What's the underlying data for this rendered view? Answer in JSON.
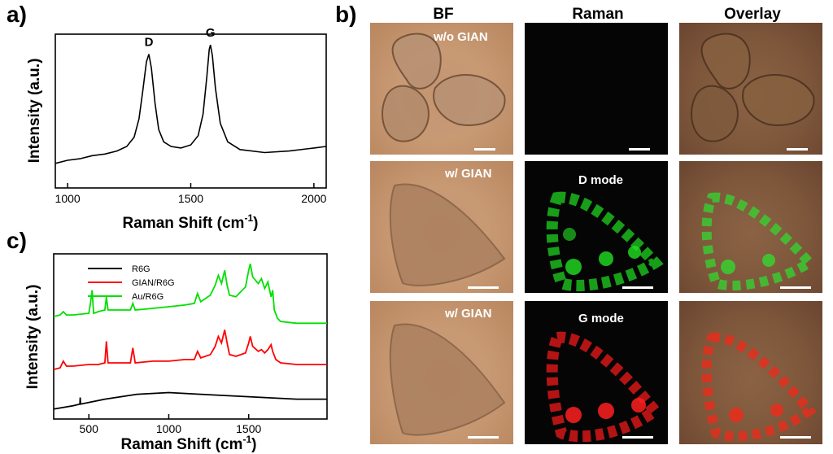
{
  "panels": {
    "a": "a)",
    "b": "b)",
    "c": "c)"
  },
  "chart_data": [
    {
      "id": "a",
      "type": "line",
      "xlabel": "Raman Shift (cm",
      "xlabel_sup": "-1",
      "xlabel_end": ")",
      "ylabel": "Intensity (a.u.)",
      "xlim": [
        950,
        2050
      ],
      "xticks": [
        1000,
        1500,
        2000
      ],
      "xtick_labels": [
        "1000",
        "1500",
        "2000"
      ],
      "annotations": [
        {
          "text": "D",
          "x": 1330
        },
        {
          "text": "G",
          "x": 1580
        }
      ],
      "series": [
        {
          "color": "#000000",
          "x": [
            950,
            1000,
            1050,
            1100,
            1150,
            1200,
            1240,
            1270,
            1290,
            1305,
            1320,
            1330,
            1340,
            1355,
            1370,
            1390,
            1420,
            1460,
            1500,
            1530,
            1550,
            1565,
            1575,
            1580,
            1588,
            1600,
            1620,
            1650,
            1700,
            1800,
            1900,
            2000,
            2050
          ],
          "y": [
            0.16,
            0.18,
            0.19,
            0.21,
            0.22,
            0.24,
            0.27,
            0.33,
            0.45,
            0.63,
            0.82,
            0.87,
            0.78,
            0.55,
            0.38,
            0.3,
            0.27,
            0.26,
            0.28,
            0.34,
            0.48,
            0.72,
            0.9,
            0.93,
            0.86,
            0.65,
            0.42,
            0.3,
            0.25,
            0.23,
            0.24,
            0.26,
            0.27
          ]
        }
      ]
    },
    {
      "id": "c",
      "type": "line",
      "xlabel": "Raman Shift (cm",
      "xlabel_sup": "-1",
      "xlabel_end": ")",
      "ylabel": "Intensity (a.u.)",
      "xlim": [
        280,
        1990
      ],
      "xticks": [
        500,
        1000,
        1500
      ],
      "xtick_labels": [
        "500",
        "1000",
        "1500"
      ],
      "legend_position": "top-left",
      "series": [
        {
          "name": "R6G",
          "color": "#000000",
          "x": [
            280,
            400,
            444,
            446,
            448,
            600,
            800,
            1000,
            1200,
            1400,
            1600,
            1800,
            1990
          ],
          "y": [
            0.06,
            0.08,
            0.09,
            0.13,
            0.09,
            0.12,
            0.15,
            0.16,
            0.15,
            0.14,
            0.13,
            0.12,
            0.12
          ]
        },
        {
          "name": "GIAN/R6G",
          "color": "#ff0000",
          "x": [
            280,
            320,
            340,
            360,
            400,
            500,
            560,
            600,
            610,
            620,
            700,
            760,
            775,
            790,
            900,
            1000,
            1100,
            1160,
            1180,
            1200,
            1260,
            1290,
            1310,
            1330,
            1350,
            1365,
            1380,
            1420,
            1480,
            1500,
            1510,
            1525,
            1560,
            1580,
            1600,
            1620,
            1640,
            1650,
            1670,
            1700,
            1800,
            1990
          ],
          "y": [
            0.3,
            0.31,
            0.35,
            0.32,
            0.32,
            0.33,
            0.33,
            0.34,
            0.47,
            0.34,
            0.34,
            0.34,
            0.43,
            0.34,
            0.35,
            0.35,
            0.36,
            0.36,
            0.41,
            0.37,
            0.39,
            0.44,
            0.5,
            0.46,
            0.54,
            0.46,
            0.39,
            0.38,
            0.4,
            0.46,
            0.5,
            0.44,
            0.41,
            0.42,
            0.4,
            0.42,
            0.45,
            0.41,
            0.36,
            0.34,
            0.33,
            0.33
          ]
        },
        {
          "name": "Au/R6G",
          "color": "#00e000",
          "x": [
            280,
            320,
            340,
            360,
            400,
            500,
            510,
            520,
            530,
            560,
            600,
            610,
            620,
            700,
            760,
            775,
            790,
            900,
            1000,
            1100,
            1160,
            1180,
            1200,
            1260,
            1290,
            1310,
            1330,
            1350,
            1365,
            1380,
            1420,
            1480,
            1500,
            1510,
            1525,
            1560,
            1580,
            1600,
            1620,
            1640,
            1650,
            1660,
            1680,
            1700,
            1800,
            1990
          ],
          "y": [
            0.62,
            0.63,
            0.65,
            0.63,
            0.63,
            0.64,
            0.7,
            0.78,
            0.64,
            0.65,
            0.66,
            0.74,
            0.66,
            0.66,
            0.66,
            0.7,
            0.66,
            0.67,
            0.68,
            0.69,
            0.7,
            0.76,
            0.71,
            0.75,
            0.81,
            0.87,
            0.82,
            0.9,
            0.81,
            0.75,
            0.74,
            0.8,
            0.9,
            0.94,
            0.86,
            0.82,
            0.85,
            0.79,
            0.83,
            0.74,
            0.78,
            0.66,
            0.61,
            0.59,
            0.58,
            0.58
          ]
        }
      ]
    }
  ],
  "microscopy": {
    "columns": [
      "BF",
      "Raman",
      "Overlay"
    ],
    "rows": [
      {
        "bf_label": "w/o GIAN",
        "raman_label": ""
      },
      {
        "bf_label": "w/ GIAN",
        "raman_label": "D mode"
      },
      {
        "bf_label": "w/ GIAN",
        "raman_label": "G mode"
      }
    ]
  }
}
